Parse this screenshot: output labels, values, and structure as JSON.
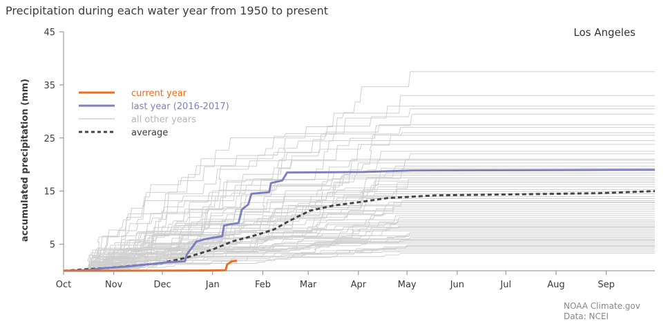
{
  "title": "Precipitation during each water year from 1950 to present",
  "credits": [
    "NOAA Climate.gov",
    "Data: NCEI"
  ],
  "chart_data": {
    "type": "line",
    "subtitle": "Los Angeles",
    "xlabel": "",
    "ylabel": "accumulated precipitation (mm)",
    "ylim": [
      0,
      45
    ],
    "yticks": [
      5,
      15,
      25,
      35,
      45
    ],
    "xlim": [
      0,
      365
    ],
    "x_ticks": [
      {
        "label": "Oct",
        "day": 0
      },
      {
        "label": "Nov",
        "day": 31
      },
      {
        "label": "Dec",
        "day": 61
      },
      {
        "label": "Jan",
        "day": 92
      },
      {
        "label": "Feb",
        "day": 123
      },
      {
        "label": "Mar",
        "day": 151
      },
      {
        "label": "Apr",
        "day": 182
      },
      {
        "label": "May",
        "day": 212
      },
      {
        "label": "Jun",
        "day": 243
      },
      {
        "label": "Jul",
        "day": 273
      },
      {
        "label": "Aug",
        "day": 304
      },
      {
        "label": "Sep",
        "day": 335
      }
    ],
    "grid": false,
    "legend_position": "top-left",
    "colors": {
      "current": "#f26a1b",
      "last": "#7e7ec2",
      "other": "#cfcfcf",
      "average": "#444444"
    },
    "series": [
      {
        "name": "current year",
        "style": "current",
        "points": [
          [
            0,
            0
          ],
          [
            18,
            0
          ],
          [
            30,
            0
          ],
          [
            90,
            0.05
          ],
          [
            100,
            0.1
          ],
          [
            101,
            1.2
          ],
          [
            104,
            1.8
          ],
          [
            107,
            1.9
          ]
        ]
      },
      {
        "name": "last year (2016-2017)",
        "style": "last",
        "points": [
          [
            0,
            0
          ],
          [
            15,
            0.1
          ],
          [
            25,
            0.5
          ],
          [
            40,
            0.8
          ],
          [
            55,
            1.3
          ],
          [
            64,
            1.6
          ],
          [
            75,
            1.8
          ],
          [
            76,
            3
          ],
          [
            82,
            5.5
          ],
          [
            88,
            6
          ],
          [
            98,
            6.5
          ],
          [
            99,
            8.5
          ],
          [
            102,
            8.7
          ],
          [
            108,
            9
          ],
          [
            110,
            11.5
          ],
          [
            114,
            12.5
          ],
          [
            116,
            14.5
          ],
          [
            127,
            14.8
          ],
          [
            128,
            16.5
          ],
          [
            135,
            17
          ],
          [
            138,
            18.5
          ],
          [
            185,
            18.6
          ],
          [
            215,
            18.9
          ],
          [
            365,
            19
          ]
        ]
      },
      {
        "name": "average",
        "style": "average",
        "points": [
          [
            0,
            0
          ],
          [
            30,
            0.6
          ],
          [
            60,
            1.4
          ],
          [
            75,
            2.4
          ],
          [
            92,
            4
          ],
          [
            105,
            5.6
          ],
          [
            120,
            6.8
          ],
          [
            130,
            7.8
          ],
          [
            140,
            9.5
          ],
          [
            152,
            11.3
          ],
          [
            167,
            12.3
          ],
          [
            182,
            12.9
          ],
          [
            200,
            13.7
          ],
          [
            230,
            14.2
          ],
          [
            280,
            14.4
          ],
          [
            330,
            14.6
          ],
          [
            365,
            15
          ]
        ]
      },
      {
        "name": "all other years",
        "style": "other",
        "finals": [
          37.5,
          33,
          31,
          30.5,
          29.5,
          27.5,
          27,
          26,
          25.5,
          24.5,
          22.5,
          22,
          21,
          20.8,
          20.3,
          19.7,
          19.3,
          18.4,
          18,
          17.5,
          17.2,
          16.6,
          16.2,
          15.8,
          15.3,
          14.9,
          14.5,
          14,
          13.6,
          13.2,
          12.8,
          12.4,
          12,
          11.6,
          11.2,
          10.8,
          10.4,
          10,
          9.6,
          9.3,
          9,
          8.7,
          8.4,
          8.1,
          7.8,
          7.5,
          7.2,
          6.9,
          6.6,
          6.3,
          6,
          5.7,
          5.4,
          5.1,
          4.8,
          4.5,
          4.2,
          3.9,
          3.6,
          3.3,
          4.7,
          8.2,
          12.9,
          16.9,
          23.8,
          5.8
        ]
      }
    ]
  }
}
